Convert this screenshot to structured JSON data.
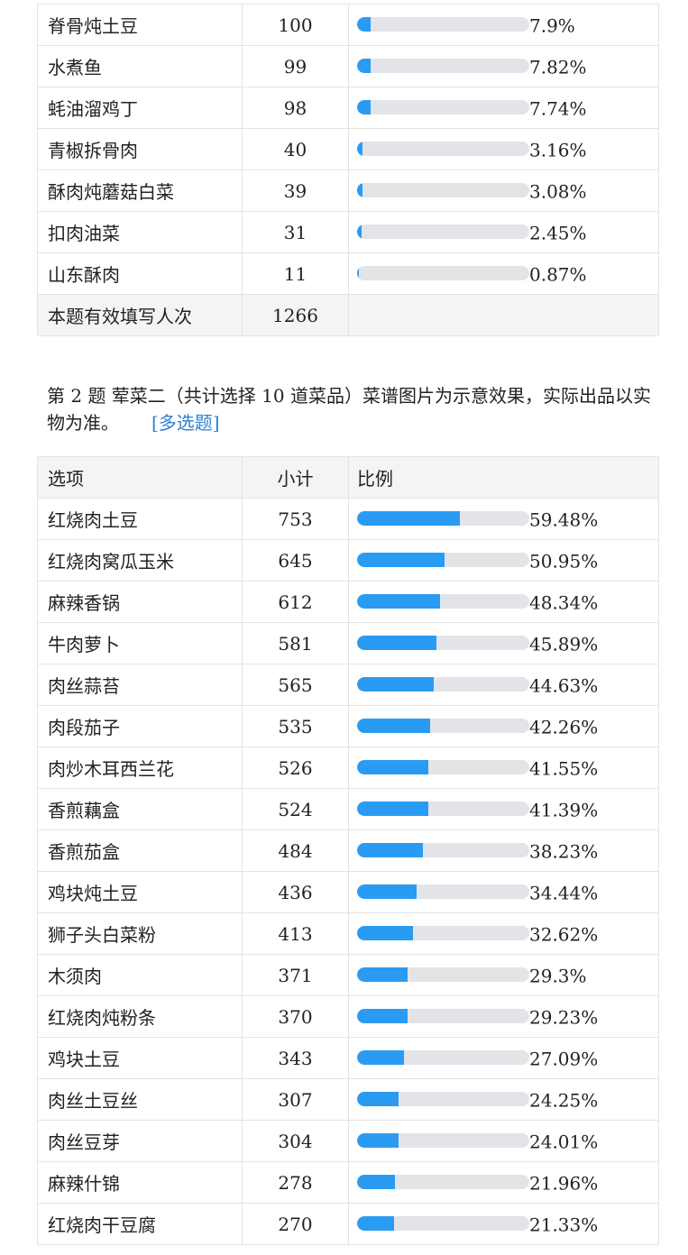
{
  "table1": {
    "rows": [
      {
        "option": "脊骨炖土豆",
        "count": "100",
        "percent": "7.9%",
        "ratio": 0.079
      },
      {
        "option": "水煮鱼",
        "count": "99",
        "percent": "7.82%",
        "ratio": 0.0782
      },
      {
        "option": "蚝油溜鸡丁",
        "count": "98",
        "percent": "7.74%",
        "ratio": 0.0774
      },
      {
        "option": "青椒拆骨肉",
        "count": "40",
        "percent": "3.16%",
        "ratio": 0.0316
      },
      {
        "option": "酥肉炖蘑菇白菜",
        "count": "39",
        "percent": "3.08%",
        "ratio": 0.0308
      },
      {
        "option": "扣肉油菜",
        "count": "31",
        "percent": "2.45%",
        "ratio": 0.0245
      },
      {
        "option": "山东酥肉",
        "count": "11",
        "percent": "0.87%",
        "ratio": 0.0087
      }
    ],
    "footer": {
      "label": "本题有效填写人次",
      "value": "1266"
    }
  },
  "question2": {
    "text": "第 2 题 荤菜二（共计选择 10 道菜品）菜谱图片为示意效果，实际出品以实物为准。",
    "type": "[多选题]"
  },
  "table2": {
    "headers": {
      "option": "选项",
      "count": "小计",
      "ratio": "比例"
    },
    "rows": [
      {
        "option": "红烧肉土豆",
        "count": "753",
        "percent": "59.48%",
        "ratio": 0.5948
      },
      {
        "option": "红烧肉窝瓜玉米",
        "count": "645",
        "percent": "50.95%",
        "ratio": 0.5095
      },
      {
        "option": "麻辣香锅",
        "count": "612",
        "percent": "48.34%",
        "ratio": 0.4834
      },
      {
        "option": "牛肉萝卜",
        "count": "581",
        "percent": "45.89%",
        "ratio": 0.4589
      },
      {
        "option": "肉丝蒜苔",
        "count": "565",
        "percent": "44.63%",
        "ratio": 0.4463
      },
      {
        "option": "肉段茄子",
        "count": "535",
        "percent": "42.26%",
        "ratio": 0.4226
      },
      {
        "option": "肉炒木耳西兰花",
        "count": "526",
        "percent": "41.55%",
        "ratio": 0.4155
      },
      {
        "option": "香煎藕盒",
        "count": "524",
        "percent": "41.39%",
        "ratio": 0.4139
      },
      {
        "option": "香煎茄盒",
        "count": "484",
        "percent": "38.23%",
        "ratio": 0.3823
      },
      {
        "option": "鸡块炖土豆",
        "count": "436",
        "percent": "34.44%",
        "ratio": 0.3444
      },
      {
        "option": "狮子头白菜粉",
        "count": "413",
        "percent": "32.62%",
        "ratio": 0.3262
      },
      {
        "option": "木须肉",
        "count": "371",
        "percent": "29.3%",
        "ratio": 0.293
      },
      {
        "option": "红烧肉炖粉条",
        "count": "370",
        "percent": "29.23%",
        "ratio": 0.2923
      },
      {
        "option": "鸡块土豆",
        "count": "343",
        "percent": "27.09%",
        "ratio": 0.2709
      },
      {
        "option": "肉丝土豆丝",
        "count": "307",
        "percent": "24.25%",
        "ratio": 0.2425
      },
      {
        "option": "肉丝豆芽",
        "count": "304",
        "percent": "24.01%",
        "ratio": 0.2401
      },
      {
        "option": "麻辣什锦",
        "count": "278",
        "percent": "21.96%",
        "ratio": 0.2196
      },
      {
        "option": "红烧肉干豆腐",
        "count": "270",
        "percent": "21.33%",
        "ratio": 0.2133
      }
    ]
  },
  "colors": {
    "bar_fill": "#2a9bf2",
    "bar_track": "#e3e4e7",
    "link": "#2e80d8"
  }
}
